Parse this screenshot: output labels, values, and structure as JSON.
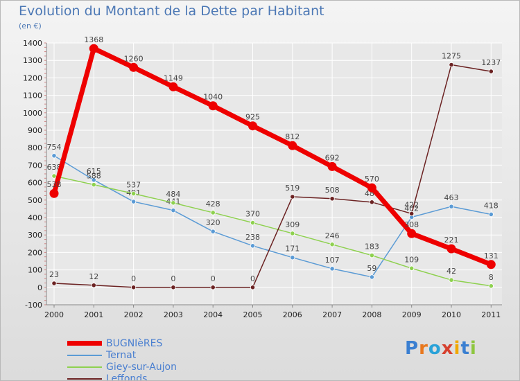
{
  "chart_data": {
    "type": "line",
    "title": "Evolution du Montant de la Dette par Habitant",
    "subtitle": "(en €)",
    "x": [
      "2000",
      "2001",
      "2002",
      "2003",
      "2004",
      "2005",
      "2006",
      "2007",
      "2008",
      "2009",
      "2010",
      "2011"
    ],
    "ylim": [
      -100,
      1400
    ],
    "yticks": [
      "-100",
      "0",
      "100",
      "200",
      "300",
      "400",
      "500",
      "600",
      "700",
      "800",
      "900",
      "1000",
      "1100",
      "1200",
      "1300",
      "1400"
    ],
    "grid": true,
    "legend_position": "bottom-left",
    "series": [
      {
        "name": "BUGNIèRES",
        "color": "#ee0000",
        "values": [
          538,
          1368,
          1260,
          1149,
          1040,
          925,
          812,
          692,
          570,
          308,
          221,
          131
        ]
      },
      {
        "name": "Ternat",
        "color": "#5b9bd5",
        "values": [
          754,
          615,
          491,
          441,
          320,
          238,
          171,
          107,
          59,
          402,
          463,
          418
        ]
      },
      {
        "name": "Giey-sur-Aujon",
        "color": "#8ed14f",
        "values": [
          638,
          588,
          537,
          484,
          428,
          370,
          309,
          246,
          183,
          109,
          42,
          8
        ]
      },
      {
        "name": "Leffonds",
        "color": "#6b2222",
        "values": [
          23,
          12,
          0,
          0,
          0,
          0,
          519,
          508,
          488,
          422,
          1275,
          1237
        ]
      }
    ]
  },
  "logo": {
    "text": "Proxiti",
    "letters": [
      "P",
      "r",
      "o",
      "x",
      "i",
      "t",
      "i"
    ],
    "colors": [
      "#3a7fd1",
      "#e8781e",
      "#2aa2d8",
      "#d6402e",
      "#f0a800",
      "#3a7fd1",
      "#8ec63f"
    ]
  }
}
